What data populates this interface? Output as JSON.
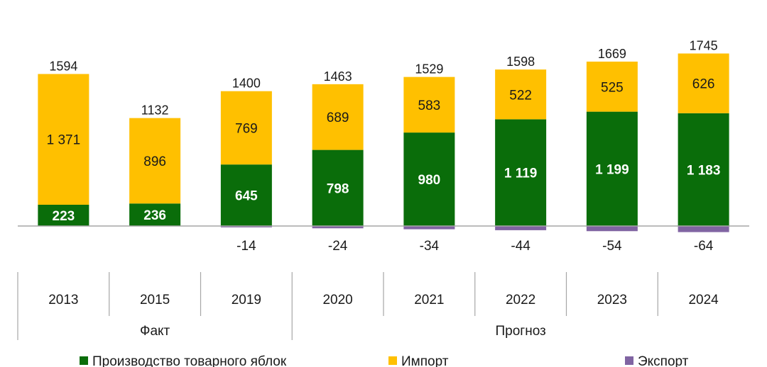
{
  "chart_data": {
    "type": "bar",
    "stacked": true,
    "categories": [
      "2013",
      "2015",
      "2019",
      "2020",
      "2021",
      "2022",
      "2023",
      "2024"
    ],
    "category_groups": [
      {
        "label": "Факт",
        "categories": [
          "2013",
          "2015",
          "2019"
        ]
      },
      {
        "label": "Прогноз",
        "categories": [
          "2020",
          "2021",
          "2022",
          "2023",
          "2024"
        ]
      }
    ],
    "series": [
      {
        "name": "Производство товарного яблок",
        "color": "#0a6d0a",
        "values": [
          223,
          236,
          645,
          798,
          980,
          1119,
          1199,
          1183
        ],
        "labels": [
          "223",
          "236",
          "645",
          "798",
          "980",
          "1 119",
          "1 199",
          "1 183"
        ]
      },
      {
        "name": "Импорт",
        "color": "#ffc000",
        "values": [
          1371,
          896,
          769,
          689,
          583,
          522,
          525,
          626
        ],
        "labels": [
          "1 371",
          "896",
          "769",
          "689",
          "583",
          "522",
          "525",
          "626"
        ]
      },
      {
        "name": "Экспорт",
        "color": "#8064a2",
        "values": [
          0,
          0,
          -14,
          -24,
          -34,
          -44,
          -54,
          -64
        ],
        "labels": [
          "",
          "",
          "-14",
          "-24",
          "-34",
          "-44",
          "-54",
          "-64"
        ]
      }
    ],
    "totals": [
      "1594",
      "1132",
      "1400",
      "1463",
      "1529",
      "1598",
      "1669",
      "1745"
    ],
    "ylim": [
      -64,
      1745
    ],
    "grid": false,
    "legend_position": "bottom"
  }
}
